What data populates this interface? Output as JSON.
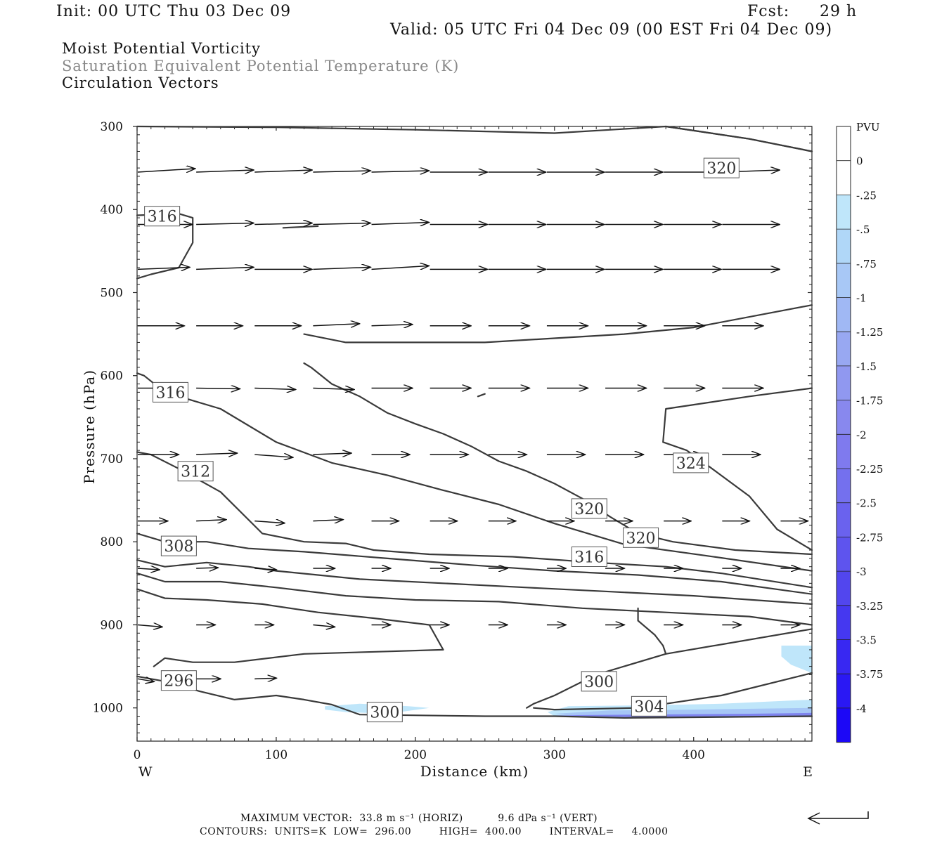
{
  "header": {
    "init": "Init: 00 UTC Thu 03 Dec 09",
    "fcst_label": "Fcst:",
    "fcst_value": "29 h",
    "valid": "Valid: 05 UTC Fri 04 Dec 09 (00 EST Fri 04 Dec 09)"
  },
  "legend_titles": [
    {
      "text": "Moist Potential Vorticity",
      "color": "#111111"
    },
    {
      "text": "Saturation Equivalent Potential Temperature (K)",
      "color": "#888888"
    },
    {
      "text": "Circulation Vectors",
      "color": "#111111"
    }
  ],
  "footer": {
    "max_vector": "MAXIMUM VECTOR:  33.8 m s⁻¹ (HORIZ)          9.6 dPa s⁻¹ (VERT)",
    "contours": "CONTOURS:  UNITS=K  LOW=  296.00        HIGH=  400.00        INTERVAL=     4.0000"
  },
  "chart_data": {
    "type": "cross-section",
    "xlabel": "Distance (km)",
    "ylabel": "Pressure (hPa)",
    "xlim": [
      0,
      485
    ],
    "ylim": [
      1040,
      300
    ],
    "x_ticks": [
      0,
      100,
      200,
      300,
      400
    ],
    "y_ticks": [
      300,
      400,
      500,
      600,
      700,
      800,
      900,
      1000
    ],
    "x_end_labels": {
      "left": "W",
      "right": "E"
    },
    "colorbar": {
      "unit": "PVU",
      "labels": [
        "0",
        "-.25",
        "-.5",
        "-.75",
        "-1",
        "-1.25",
        "-1.5",
        "-1.75",
        "-2",
        "-2.25",
        "-2.5",
        "-2.75",
        "-3",
        "-3.25",
        "-3.5",
        "-3.75",
        "-4"
      ],
      "colors": [
        "#ffffff",
        "#ffffff",
        "#bfe6fa",
        "#b0d7f8",
        "#a8c8f6",
        "#a0b8f4",
        "#98a8f2",
        "#9098f0",
        "#8888ee",
        "#7f7aee",
        "#7470ee",
        "#6a62ee",
        "#5e54ee",
        "#5246ee",
        "#4538f0",
        "#3828f2",
        "#2a18f4",
        "#1c08f6"
      ]
    },
    "contour_labels": [
      {
        "text": "320",
        "x": 420,
        "p": 350
      },
      {
        "text": "316",
        "x": 18,
        "p": 408
      },
      {
        "text": "316",
        "x": 24,
        "p": 620
      },
      {
        "text": "312",
        "x": 42,
        "p": 715
      },
      {
        "text": "308",
        "x": 30,
        "p": 805
      },
      {
        "text": "296",
        "x": 30,
        "p": 967
      },
      {
        "text": "324",
        "x": 398,
        "p": 705
      },
      {
        "text": "320",
        "x": 325,
        "p": 760
      },
      {
        "text": "320",
        "x": 362,
        "p": 795
      },
      {
        "text": "316",
        "x": 325,
        "p": 818
      },
      {
        "text": "300",
        "x": 332,
        "p": 968
      },
      {
        "text": "304",
        "x": 368,
        "p": 998
      },
      {
        "text": "300",
        "x": 178,
        "p": 1005
      }
    ],
    "theta_contours": [
      [
        [
          0,
          300
        ],
        [
          100,
          301
        ],
        [
          200,
          304
        ],
        [
          300,
          308
        ],
        [
          380,
          300
        ],
        [
          440,
          315
        ],
        [
          485,
          330
        ]
      ],
      [
        [
          380,
          300
        ],
        [
          440,
          315
        ],
        [
          485,
          330
        ]
      ],
      [
        [
          245,
          625
        ],
        [
          250,
          622
        ]
      ],
      [
        [
          0,
          597
        ],
        [
          5,
          600
        ],
        [
          20,
          620
        ],
        [
          60,
          640
        ],
        [
          100,
          680
        ],
        [
          140,
          705
        ],
        [
          180,
          720
        ],
        [
          220,
          738
        ],
        [
          260,
          755
        ],
        [
          300,
          778
        ],
        [
          350,
          803
        ],
        [
          410,
          817
        ],
        [
          485,
          835
        ]
      ],
      [
        [
          0,
          692
        ],
        [
          10,
          695
        ],
        [
          30,
          712
        ],
        [
          60,
          740
        ],
        [
          90,
          790
        ],
        [
          120,
          800
        ],
        [
          150,
          802
        ],
        [
          170,
          810
        ],
        [
          210,
          815
        ],
        [
          270,
          818
        ],
        [
          330,
          825
        ],
        [
          380,
          830
        ],
        [
          420,
          838
        ],
        [
          485,
          855
        ]
      ],
      [
        [
          0,
          790
        ],
        [
          20,
          800
        ],
        [
          50,
          800
        ],
        [
          80,
          808
        ],
        [
          120,
          812
        ],
        [
          180,
          820
        ],
        [
          240,
          828
        ],
        [
          300,
          835
        ],
        [
          360,
          840
        ],
        [
          420,
          848
        ],
        [
          485,
          863
        ]
      ],
      [
        [
          0,
          822
        ],
        [
          20,
          830
        ],
        [
          50,
          825
        ],
        [
          80,
          830
        ],
        [
          100,
          835
        ],
        [
          160,
          845
        ],
        [
          220,
          850
        ],
        [
          280,
          855
        ],
        [
          340,
          860
        ],
        [
          400,
          865
        ],
        [
          485,
          875
        ]
      ],
      [
        [
          0,
          838
        ],
        [
          20,
          848
        ],
        [
          60,
          848
        ],
        [
          100,
          855
        ],
        [
          150,
          865
        ],
        [
          200,
          870
        ],
        [
          260,
          872
        ],
        [
          320,
          880
        ],
        [
          380,
          885
        ],
        [
          440,
          890
        ],
        [
          485,
          900
        ]
      ],
      [
        [
          0,
          857
        ],
        [
          20,
          868
        ],
        [
          50,
          870
        ],
        [
          90,
          875
        ],
        [
          130,
          885
        ],
        [
          170,
          892
        ],
        [
          210,
          900
        ],
        [
          220,
          930
        ],
        [
          180,
          932
        ],
        [
          120,
          935
        ],
        [
          70,
          945
        ],
        [
          40,
          945
        ],
        [
          20,
          940
        ],
        [
          12,
          950
        ]
      ],
      [
        [
          120,
          550
        ],
        [
          150,
          560
        ],
        [
          200,
          560
        ],
        [
          250,
          560
        ],
        [
          300,
          555
        ],
        [
          350,
          550
        ],
        [
          400,
          542
        ],
        [
          485,
          515
        ]
      ],
      [
        [
          120,
          585
        ],
        [
          125,
          590
        ],
        [
          140,
          610
        ],
        [
          160,
          625
        ],
        [
          180,
          645
        ],
        [
          200,
          658
        ],
        [
          220,
          670
        ],
        [
          240,
          685
        ],
        [
          260,
          703
        ],
        [
          280,
          715
        ],
        [
          300,
          730
        ],
        [
          320,
          748
        ],
        [
          340,
          770
        ],
        [
          360,
          790
        ],
        [
          385,
          800
        ],
        [
          430,
          810
        ],
        [
          485,
          815
        ]
      ],
      [
        [
          485,
          615
        ],
        [
          440,
          625
        ],
        [
          400,
          635
        ],
        [
          380,
          640
        ],
        [
          378,
          680
        ],
        [
          395,
          690
        ],
        [
          410,
          708
        ],
        [
          440,
          745
        ],
        [
          460,
          785
        ],
        [
          485,
          810
        ]
      ],
      [
        [
          0,
          962
        ],
        [
          20,
          968
        ],
        [
          45,
          980
        ],
        [
          70,
          990
        ],
        [
          100,
          985
        ],
        [
          120,
          990
        ],
        [
          140,
          996
        ],
        [
          160,
          1008
        ],
        [
          250,
          1010
        ],
        [
          300,
          1010
        ],
        [
          350,
          1012
        ],
        [
          485,
          1010
        ]
      ],
      [
        [
          280,
          1000
        ],
        [
          285,
          995
        ],
        [
          300,
          985
        ],
        [
          330,
          960
        ],
        [
          380,
          935
        ],
        [
          485,
          905
        ]
      ],
      [
        [
          380,
          935
        ],
        [
          378,
          925
        ],
        [
          372,
          912
        ],
        [
          360,
          895
        ],
        [
          360,
          880
        ]
      ],
      [
        [
          285,
          1000
        ],
        [
          300,
          1002
        ],
        [
          360,
          1000
        ],
        [
          420,
          985
        ],
        [
          485,
          958
        ]
      ],
      [
        [
          0,
          483
        ],
        [
          10,
          478
        ],
        [
          30,
          470
        ],
        [
          40,
          440
        ],
        [
          40,
          410
        ],
        [
          30,
          405
        ],
        [
          0,
          407
        ]
      ],
      [
        [
          105,
          422
        ],
        [
          130,
          420
        ]
      ]
    ],
    "mpv_shading": [
      {
        "pts": [
          [
            135,
            998
          ],
          [
            160,
            995
          ],
          [
            195,
            998
          ],
          [
            210,
            1000
          ],
          [
            180,
            1007
          ],
          [
            150,
            1005
          ],
          [
            135,
            1002
          ]
        ],
        "color": "#bfe6fa"
      },
      {
        "pts": [
          [
            295,
            1005
          ],
          [
            310,
            998
          ],
          [
            360,
            997
          ],
          [
            420,
            995
          ],
          [
            485,
            990
          ],
          [
            485,
            1010
          ],
          [
            420,
            1012
          ],
          [
            350,
            1011
          ],
          [
            300,
            1010
          ]
        ],
        "color": "#bfe6fa"
      },
      {
        "pts": [
          [
            300,
            1007
          ],
          [
            340,
            1003
          ],
          [
            400,
            1002
          ],
          [
            485,
            1000
          ],
          [
            485,
            1010
          ],
          [
            400,
            1011
          ],
          [
            320,
            1011
          ]
        ],
        "color": "#a6c6f6"
      },
      {
        "pts": [
          [
            300,
            1009
          ],
          [
            360,
            1008
          ],
          [
            440,
            1007
          ],
          [
            485,
            1006
          ],
          [
            485,
            1011
          ],
          [
            380,
            1012
          ]
        ],
        "color": "#7f84ee"
      },
      {
        "pts": [
          [
            463,
            925
          ],
          [
            485,
            925
          ],
          [
            485,
            958
          ],
          [
            470,
            948
          ],
          [
            463,
            938
          ]
        ],
        "color": "#bfe6fa"
      }
    ],
    "vector_rows": [
      {
        "p": 355,
        "x": [
          0,
          42,
          84,
          126,
          168,
          210,
          252,
          294,
          336,
          378,
          420,
          462
        ],
        "u": [
          42,
          42,
          42,
          42,
          42,
          42,
          42,
          42,
          42,
          42,
          42,
          42
        ],
        "w": [
          -5,
          -3,
          -3,
          -2,
          -2,
          0,
          0,
          0,
          0,
          0,
          -3,
          0
        ]
      },
      {
        "p": 418,
        "x": [
          0,
          42,
          84,
          126,
          168,
          210,
          252,
          294,
          336,
          378,
          420,
          462
        ],
        "u": [
          40,
          42,
          42,
          42,
          42,
          42,
          42,
          42,
          42,
          42,
          42,
          42
        ],
        "w": [
          0,
          -2,
          -2,
          -2,
          -3,
          0,
          0,
          0,
          0,
          0,
          0,
          0
        ]
      },
      {
        "p": 472,
        "x": [
          0,
          42,
          84,
          126,
          168,
          210,
          252,
          294,
          336,
          378,
          420,
          462
        ],
        "u": [
          38,
          42,
          42,
          42,
          42,
          42,
          42,
          42,
          42,
          42,
          42,
          42
        ],
        "w": [
          -3,
          -3,
          0,
          -3,
          -5,
          0,
          0,
          0,
          0,
          0,
          0,
          0
        ]
      },
      {
        "p": 540,
        "x": [
          0,
          42,
          84,
          126,
          168,
          210,
          252,
          294,
          336,
          378,
          420,
          462
        ],
        "u": [
          34,
          34,
          34,
          34,
          30,
          30,
          30,
          30,
          30,
          30,
          30,
          30
        ],
        "w": [
          0,
          0,
          0,
          -3,
          -2,
          0,
          0,
          0,
          0,
          0,
          0,
          0
        ]
      },
      {
        "p": 615,
        "x": [
          0,
          42,
          84,
          126,
          168,
          210,
          252,
          294,
          336,
          378,
          420,
          462
        ],
        "u": [
          32,
          32,
          30,
          30,
          30,
          30,
          30,
          30,
          30,
          30,
          30,
          30
        ],
        "w": [
          0,
          1,
          2,
          2,
          0,
          0,
          0,
          0,
          0,
          0,
          0,
          0
        ]
      },
      {
        "p": 695,
        "x": [
          0,
          42,
          84,
          126,
          168,
          210,
          252,
          294,
          336,
          378,
          420,
          462
        ],
        "u": [
          30,
          30,
          28,
          28,
          28,
          28,
          28,
          28,
          28,
          28,
          28,
          28
        ],
        "w": [
          0,
          -2,
          4,
          -2,
          0,
          0,
          0,
          0,
          0,
          0,
          0,
          0
        ]
      },
      {
        "p": 775,
        "x": [
          0,
          42,
          84,
          126,
          168,
          210,
          252,
          294,
          336,
          378,
          420,
          462
        ],
        "u": [
          22,
          22,
          22,
          22,
          20,
          20,
          20,
          20,
          20,
          20,
          20,
          20
        ],
        "w": [
          0,
          -2,
          3,
          -2,
          0,
          0,
          0,
          0,
          0,
          0,
          0,
          0
        ]
      },
      {
        "p": 832,
        "x": [
          0,
          42,
          84,
          126,
          168,
          210,
          252,
          294,
          336,
          378,
          420,
          462
        ],
        "u": [
          16,
          16,
          16,
          16,
          14,
          14,
          14,
          14,
          14,
          14,
          14,
          14
        ],
        "w": [
          2,
          -1,
          2,
          0,
          0,
          0,
          0,
          0,
          0,
          0,
          0,
          0
        ]
      },
      {
        "p": 900,
        "x": [
          0,
          42,
          84,
          126,
          168,
          210,
          252,
          294,
          336,
          378,
          420,
          462
        ],
        "u": [
          18,
          14,
          14,
          16,
          14,
          14,
          14,
          14,
          14,
          14,
          14,
          14
        ],
        "w": [
          3,
          0,
          0,
          3,
          0,
          0,
          0,
          0,
          0,
          0,
          0,
          0
        ]
      },
      {
        "p": 965,
        "x": [
          0,
          42,
          84
        ],
        "u": [
          12,
          18,
          16
        ],
        "w": [
          4,
          0,
          -1
        ]
      }
    ],
    "max_vector_arrow": {
      "x": 0,
      "len": 38
    }
  }
}
